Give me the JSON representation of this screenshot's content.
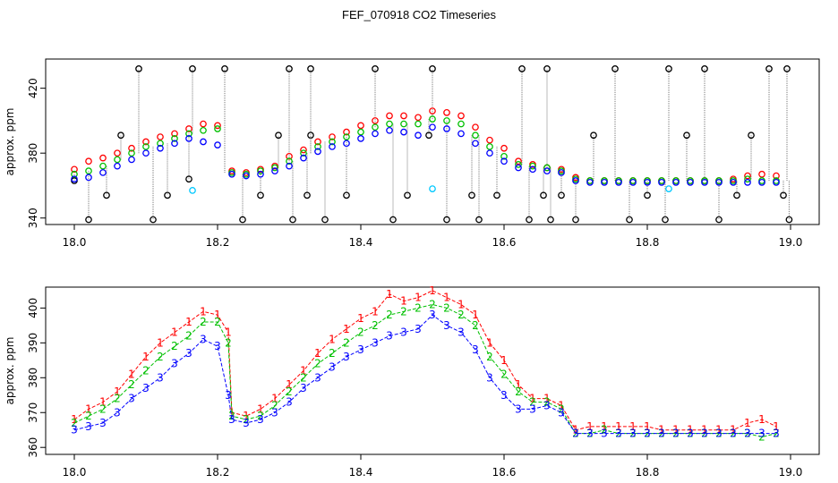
{
  "title": "FEF_070918  CO2 Timeseries",
  "chart_data": [
    {
      "type": "scatter",
      "ylabel": "approx. ppm",
      "xlim": [
        18.0,
        19.0
      ],
      "ylim": [
        336,
        438
      ],
      "x_ticks": [
        "18.0",
        "18.2",
        "18.4",
        "18.6",
        "18.8",
        "19.0"
      ],
      "y_ticks": [
        "340",
        "380",
        "420"
      ],
      "y_tick_values": [
        340,
        380,
        420
      ],
      "grid": false,
      "colors": {
        "red": "#ff0000",
        "green": "#00c000",
        "blue": "#0000ff",
        "black": "#000000",
        "cyan": "#00c8ff"
      },
      "series": [
        {
          "color": "black",
          "note": "outliers (spikes)",
          "x": [
            18.0,
            18.02,
            18.045,
            18.065,
            18.09,
            18.11,
            18.13,
            18.16,
            18.165,
            18.21,
            18.235,
            18.26,
            18.285,
            18.3,
            18.305,
            18.325,
            18.33,
            18.33,
            18.35,
            18.38,
            18.42,
            18.445,
            18.465,
            18.495,
            18.5,
            18.52,
            18.555,
            18.565,
            18.59,
            18.625,
            18.635,
            18.655,
            18.66,
            18.665,
            18.68,
            18.7,
            18.725,
            18.755,
            18.775,
            18.8,
            18.825,
            18.83,
            18.855,
            18.88,
            18.9,
            18.925,
            18.945,
            18.97,
            18.99,
            18.995,
            18.998
          ],
          "y": [
            363,
            339,
            354,
            391,
            432,
            339,
            354,
            364,
            432,
            432,
            339,
            354,
            391,
            432,
            339,
            354,
            391,
            432,
            339,
            354,
            432,
            339,
            354,
            391,
            432,
            339,
            354,
            339,
            354,
            432,
            339,
            354,
            432,
            339,
            354,
            339,
            391,
            432,
            339,
            354,
            339,
            432,
            391,
            432,
            339,
            354,
            391,
            432,
            354,
            432,
            339
          ]
        },
        {
          "color": "red",
          "x": [
            18.0,
            18.02,
            18.04,
            18.06,
            18.08,
            18.1,
            18.12,
            18.14,
            18.16,
            18.18,
            18.2,
            18.22,
            18.24,
            18.26,
            18.28,
            18.3,
            18.32,
            18.34,
            18.36,
            18.38,
            18.4,
            18.42,
            18.44,
            18.46,
            18.48,
            18.5,
            18.52,
            18.54,
            18.56,
            18.58,
            18.6,
            18.62,
            18.64,
            18.66,
            18.68,
            18.7,
            18.72,
            18.74,
            18.76,
            18.78,
            18.8,
            18.82,
            18.84,
            18.86,
            18.88,
            18.9,
            18.92,
            18.94,
            18.96,
            18.98
          ],
          "y": [
            370,
            375,
            377,
            380,
            383,
            387,
            390,
            392,
            395,
            398,
            397,
            369,
            368,
            370,
            372,
            378,
            382,
            387,
            390,
            393,
            397,
            400,
            403,
            403,
            402,
            406,
            405,
            403,
            396,
            388,
            383,
            375,
            373,
            371,
            370,
            365,
            363,
            363,
            363,
            363,
            363,
            363,
            363,
            363,
            363,
            363,
            364,
            366,
            367,
            366
          ]
        },
        {
          "color": "green",
          "x": [
            18.0,
            18.02,
            18.04,
            18.06,
            18.08,
            18.1,
            18.12,
            18.14,
            18.16,
            18.18,
            18.2,
            18.22,
            18.24,
            18.26,
            18.28,
            18.3,
            18.32,
            18.34,
            18.36,
            18.38,
            18.4,
            18.42,
            18.44,
            18.46,
            18.48,
            18.5,
            18.52,
            18.54,
            18.56,
            18.58,
            18.6,
            18.62,
            18.64,
            18.66,
            18.68,
            18.7,
            18.72,
            18.74,
            18.76,
            18.78,
            18.8,
            18.82,
            18.84,
            18.86,
            18.88,
            18.9,
            18.92,
            18.94,
            18.96,
            18.98
          ],
          "y": [
            367,
            369,
            372,
            376,
            380,
            384,
            386,
            389,
            392,
            394,
            395,
            368,
            367,
            369,
            371,
            375,
            380,
            384,
            387,
            390,
            393,
            396,
            398,
            398,
            398,
            401,
            400,
            398,
            391,
            384,
            378,
            373,
            372,
            371,
            369,
            364,
            363,
            363,
            363,
            363,
            363,
            363,
            363,
            363,
            363,
            363,
            363,
            364,
            363,
            363
          ]
        },
        {
          "color": "blue",
          "x": [
            18.0,
            18.02,
            18.04,
            18.06,
            18.08,
            18.1,
            18.12,
            18.14,
            18.16,
            18.18,
            18.2,
            18.22,
            18.24,
            18.26,
            18.28,
            18.3,
            18.32,
            18.34,
            18.36,
            18.38,
            18.4,
            18.42,
            18.44,
            18.46,
            18.48,
            18.5,
            18.52,
            18.54,
            18.56,
            18.58,
            18.6,
            18.62,
            18.64,
            18.66,
            18.68,
            18.7,
            18.72,
            18.74,
            18.76,
            18.78,
            18.8,
            18.82,
            18.84,
            18.86,
            18.88,
            18.9,
            18.92,
            18.94,
            18.96,
            18.98
          ],
          "y": [
            364,
            365,
            368,
            372,
            376,
            380,
            383,
            386,
            389,
            387,
            385,
            367,
            366,
            367,
            369,
            372,
            377,
            381,
            384,
            386,
            389,
            392,
            394,
            393,
            391,
            396,
            395,
            392,
            386,
            380,
            375,
            371,
            370,
            369,
            368,
            363,
            362,
            362,
            362,
            362,
            362,
            362,
            362,
            362,
            362,
            362,
            362,
            362,
            362,
            362
          ]
        },
        {
          "color": "cyan",
          "x": [
            18.165,
            18.5,
            18.83
          ],
          "y": [
            357,
            358,
            358
          ]
        }
      ]
    },
    {
      "type": "scatter",
      "ylabel": "approx. ppm",
      "xlim": [
        18.0,
        19.0
      ],
      "ylim": [
        358,
        406
      ],
      "x_ticks": [
        "18.0",
        "18.2",
        "18.4",
        "18.6",
        "18.8",
        "19.0"
      ],
      "y_ticks": [
        "360",
        "370",
        "380",
        "390",
        "400"
      ],
      "y_tick_values": [
        360,
        370,
        380,
        390,
        400
      ],
      "grid": false,
      "colors": {
        "red": "#ff0000",
        "green": "#00c000",
        "blue": "#0000ff"
      },
      "series": [
        {
          "symbol": "1",
          "color": "red",
          "x": [
            18.0,
            18.02,
            18.04,
            18.06,
            18.08,
            18.1,
            18.12,
            18.14,
            18.16,
            18.18,
            18.2,
            18.215,
            18.22,
            18.24,
            18.26,
            18.28,
            18.3,
            18.32,
            18.34,
            18.36,
            18.38,
            18.4,
            18.42,
            18.44,
            18.46,
            18.48,
            18.5,
            18.52,
            18.54,
            18.56,
            18.58,
            18.6,
            18.62,
            18.64,
            18.66,
            18.68,
            18.7,
            18.72,
            18.74,
            18.76,
            18.78,
            18.8,
            18.82,
            18.84,
            18.86,
            18.88,
            18.9,
            18.92,
            18.94,
            18.96,
            18.98
          ],
          "y": [
            368,
            371,
            373,
            376,
            381,
            386,
            390,
            393,
            396,
            399,
            398,
            393,
            370,
            369,
            371,
            374,
            378,
            382,
            387,
            391,
            394,
            397,
            399,
            404,
            402,
            403,
            405,
            403,
            401,
            398,
            390,
            385,
            378,
            374,
            374,
            372,
            365,
            366,
            366,
            366,
            366,
            366,
            365,
            365,
            365,
            365,
            365,
            365,
            367,
            368,
            366
          ]
        },
        {
          "symbol": "2",
          "color": "green",
          "x": [
            18.0,
            18.02,
            18.04,
            18.06,
            18.08,
            18.1,
            18.12,
            18.14,
            18.16,
            18.18,
            18.2,
            18.215,
            18.22,
            18.24,
            18.26,
            18.28,
            18.3,
            18.32,
            18.34,
            18.36,
            18.38,
            18.4,
            18.42,
            18.44,
            18.46,
            18.48,
            18.5,
            18.52,
            18.54,
            18.56,
            18.58,
            18.6,
            18.62,
            18.64,
            18.66,
            18.68,
            18.7,
            18.72,
            18.74,
            18.76,
            18.78,
            18.8,
            18.82,
            18.84,
            18.86,
            18.88,
            18.9,
            18.92,
            18.94,
            18.96,
            18.98
          ],
          "y": [
            367,
            369,
            371,
            374,
            378,
            382,
            386,
            389,
            392,
            396,
            396,
            390,
            369,
            368,
            369,
            372,
            376,
            380,
            384,
            387,
            390,
            393,
            395,
            398,
            399,
            400,
            401,
            400,
            398,
            395,
            386,
            381,
            376,
            373,
            373,
            371,
            364,
            364,
            365,
            364,
            364,
            364,
            364,
            364,
            364,
            364,
            364,
            364,
            364,
            363,
            364
          ]
        },
        {
          "symbol": "3",
          "color": "blue",
          "x": [
            18.0,
            18.02,
            18.04,
            18.06,
            18.08,
            18.1,
            18.12,
            18.14,
            18.16,
            18.18,
            18.2,
            18.215,
            18.22,
            18.24,
            18.26,
            18.28,
            18.3,
            18.32,
            18.34,
            18.36,
            18.38,
            18.4,
            18.42,
            18.44,
            18.46,
            18.48,
            18.5,
            18.52,
            18.54,
            18.56,
            18.58,
            18.6,
            18.62,
            18.64,
            18.66,
            18.68,
            18.7,
            18.72,
            18.74,
            18.76,
            18.78,
            18.8,
            18.82,
            18.84,
            18.86,
            18.88,
            18.9,
            18.92,
            18.94,
            18.96,
            18.98
          ],
          "y": [
            365,
            366,
            367,
            370,
            374,
            377,
            380,
            384,
            387,
            391,
            389,
            375,
            368,
            367,
            368,
            370,
            373,
            377,
            380,
            383,
            386,
            388,
            390,
            392,
            393,
            394,
            398,
            395,
            393,
            388,
            380,
            375,
            371,
            371,
            372,
            370,
            364,
            364,
            364,
            364,
            364,
            364,
            364,
            364,
            364,
            364,
            364,
            364,
            364,
            364,
            364
          ]
        }
      ]
    }
  ]
}
